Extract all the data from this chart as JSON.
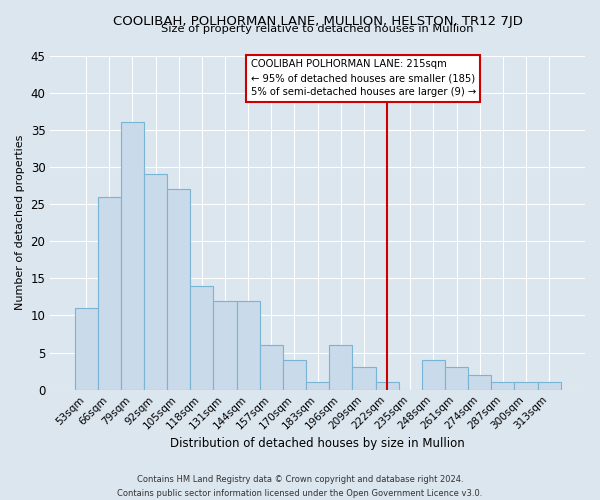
{
  "title": "COOLIBAH, POLHORMAN LANE, MULLION, HELSTON, TR12 7JD",
  "subtitle": "Size of property relative to detached houses in Mullion",
  "xlabel": "Distribution of detached houses by size in Mullion",
  "ylabel": "Number of detached properties",
  "categories": [
    "53sqm",
    "66sqm",
    "79sqm",
    "92sqm",
    "105sqm",
    "118sqm",
    "131sqm",
    "144sqm",
    "157sqm",
    "170sqm",
    "183sqm",
    "196sqm",
    "209sqm",
    "222sqm",
    "235sqm",
    "248sqm",
    "261sqm",
    "274sqm",
    "287sqm",
    "300sqm",
    "313sqm"
  ],
  "values": [
    11,
    26,
    36,
    29,
    27,
    14,
    12,
    12,
    6,
    4,
    1,
    6,
    3,
    1,
    0,
    4,
    3,
    2,
    1,
    1,
    1
  ],
  "bar_color": "#c9daea",
  "bar_edge_color": "#7ab4d4",
  "ylim_max": 45,
  "yticks": [
    0,
    5,
    10,
    15,
    20,
    25,
    30,
    35,
    40,
    45
  ],
  "vline_index": 13.0,
  "vline_color": "#cc0000",
  "annotation_title": "COOLIBAH POLHORMAN LANE: 215sqm",
  "annotation_line1": "← 95% of detached houses are smaller (185)",
  "annotation_line2": "5% of semi-detached houses are larger (9) →",
  "footnote1": "Contains HM Land Registry data © Crown copyright and database right 2024.",
  "footnote2": "Contains public sector information licensed under the Open Government Licence v3.0.",
  "background_color": "#dce6ef",
  "grid_color": "#ffffff"
}
